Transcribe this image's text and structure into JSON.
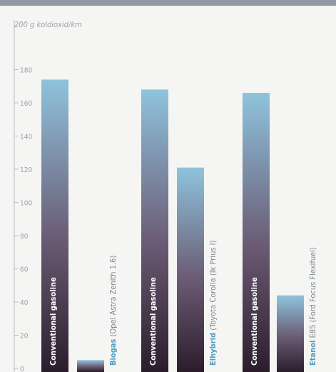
{
  "chart_data": {
    "type": "bar",
    "ylabel": "200 g koldioxid/km",
    "ylim": [
      0,
      200
    ],
    "yticks": [
      0,
      20,
      40,
      60,
      80,
      100,
      120,
      140,
      160,
      180
    ],
    "categories": [
      "Conventional gasoline",
      "Biogas (Opel Astra Zenith 1.6)",
      "Conventional gasoline",
      "Elhybrid (Toyota Corolla (Ik Prius I)",
      "Conventional gasoline",
      "Etanol E85 (Ford Focus Flexifuel)"
    ],
    "values": [
      174,
      5,
      168,
      121,
      166,
      44
    ],
    "category_styles": [
      "white",
      "biogas",
      "white",
      "biogas",
      "white",
      "biogas"
    ],
    "grid": false,
    "colors": {
      "bar_top": "#8fc3dd",
      "bar_mid": "#6a5a73",
      "bar_bottom": "#2b1d2c",
      "label_white": "#ffffff",
      "label_blue": "#4f9bc4",
      "label_gray": "#7c8690",
      "axis": "#b7bcc2",
      "tick_text": "#9aa2aa"
    }
  }
}
